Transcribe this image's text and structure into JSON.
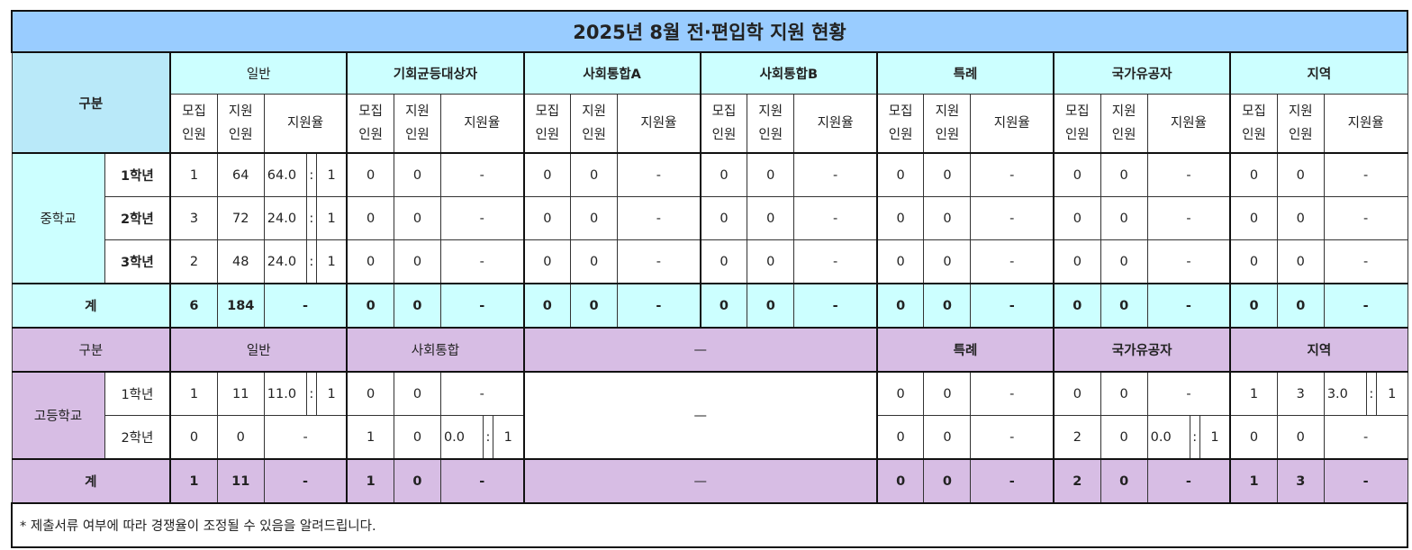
{
  "title": "2025년 8월 전·편입학 지원 현황",
  "ratio_separator": ":",
  "middle": {
    "header_label": "구분",
    "groups": [
      "일반",
      "기회균등대상자",
      "사회통합A",
      "사회통합B",
      "특례",
      "국가유공자",
      "지역"
    ],
    "sub_headers": {
      "recruit": "모집\n인원",
      "apply": "지원\n인원",
      "ratio": "지원율"
    },
    "school_label": "중학교",
    "rows": [
      {
        "grade": "1학년",
        "cells": [
          [
            "1",
            "64",
            {
              "value": "64.0",
              "to": "1"
            }
          ],
          [
            "0",
            "0",
            "-"
          ],
          [
            "0",
            "0",
            "-"
          ],
          [
            "0",
            "0",
            "-"
          ],
          [
            "0",
            "0",
            "-"
          ],
          [
            "0",
            "0",
            "-"
          ],
          [
            "0",
            "0",
            "-"
          ]
        ]
      },
      {
        "grade": "2학년",
        "cells": [
          [
            "3",
            "72",
            {
              "value": "24.0",
              "to": "1"
            }
          ],
          [
            "0",
            "0",
            "-"
          ],
          [
            "0",
            "0",
            "-"
          ],
          [
            "0",
            "0",
            "-"
          ],
          [
            "0",
            "0",
            "-"
          ],
          [
            "0",
            "0",
            "-"
          ],
          [
            "0",
            "0",
            "-"
          ]
        ]
      },
      {
        "grade": "3학년",
        "cells": [
          [
            "2",
            "48",
            {
              "value": "24.0",
              "to": "1"
            }
          ],
          [
            "0",
            "0",
            "-"
          ],
          [
            "0",
            "0",
            "-"
          ],
          [
            "0",
            "0",
            "-"
          ],
          [
            "0",
            "0",
            "-"
          ],
          [
            "0",
            "0",
            "-"
          ],
          [
            "0",
            "0",
            "-"
          ]
        ]
      }
    ],
    "total": {
      "label": "계",
      "cells": [
        [
          "6",
          "184",
          "-"
        ],
        [
          "0",
          "0",
          "-"
        ],
        [
          "0",
          "0",
          "-"
        ],
        [
          "0",
          "0",
          "-"
        ],
        [
          "0",
          "0",
          "-"
        ],
        [
          "0",
          "0",
          "-"
        ],
        [
          "0",
          "0",
          "-"
        ]
      ]
    }
  },
  "high": {
    "header_label": "구분",
    "groups": [
      "일반",
      "사회통합",
      "—",
      "특례",
      "국가유공자",
      "지역"
    ],
    "school_label": "고등학교",
    "empty_mark": "—",
    "rows": [
      {
        "grade": "1학년",
        "cells": [
          [
            "1",
            "11",
            {
              "value": "11.0",
              "to": "1"
            }
          ],
          [
            "0",
            "0",
            "-"
          ],
          null,
          [
            "0",
            "0",
            "-"
          ],
          [
            "0",
            "0",
            "-"
          ],
          [
            "1",
            "3",
            {
              "value": "3.0",
              "to": "1"
            }
          ]
        ]
      },
      {
        "grade": "2학년",
        "cells": [
          [
            "0",
            "0",
            "-"
          ],
          [
            "1",
            "0",
            {
              "value": "0.0",
              "to": "1"
            }
          ],
          null,
          [
            "0",
            "0",
            "-"
          ],
          [
            "2",
            "0",
            {
              "value": "0.0",
              "to": "1"
            }
          ],
          [
            "0",
            "0",
            "-"
          ]
        ]
      }
    ],
    "total": {
      "label": "계",
      "cells": [
        [
          "1",
          "11",
          "-"
        ],
        [
          "1",
          "0",
          "-"
        ],
        null,
        [
          "0",
          "0",
          "-"
        ],
        [
          "2",
          "0",
          "-"
        ],
        [
          "1",
          "3",
          "-"
        ]
      ]
    }
  },
  "colors": {
    "title_bg": "#99ccff",
    "middle_header_bg": "#ccffff",
    "middle_label_bg": "#b9e9f9",
    "high_bg": "#d7bde4"
  },
  "note": "* 제출서류 여부에 따라 경쟁율이 조정될 수 있음을 알려드립니다."
}
